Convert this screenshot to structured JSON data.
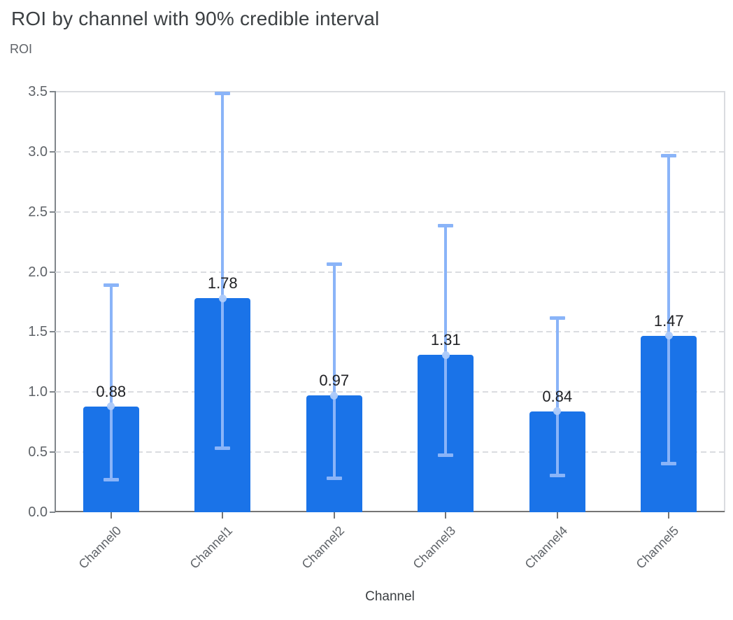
{
  "header": {
    "title": "ROI by channel with 90% credible interval"
  },
  "chart_data": {
    "type": "bar",
    "title": "ROI by channel with 90% credible interval",
    "xlabel": "Channel",
    "ylabel": "ROI",
    "categories": [
      "Channel0",
      "Channel1",
      "Channel2",
      "Channel3",
      "Channel4",
      "Channel5"
    ],
    "values": [
      0.88,
      1.78,
      0.97,
      1.31,
      0.84,
      1.47
    ],
    "value_labels": [
      "0.88",
      "1.78",
      "0.97",
      "1.31",
      "0.84",
      "1.47"
    ],
    "error_bars": {
      "label": "90% credible interval",
      "low": [
        0.27,
        0.53,
        0.28,
        0.47,
        0.3,
        0.4
      ],
      "high": [
        1.89,
        3.49,
        2.07,
        2.39,
        1.62,
        2.97
      ]
    },
    "ylim": [
      0,
      3.5
    ],
    "ytick_labels": [
      "0.0",
      "0.5",
      "1.0",
      "1.5",
      "2.0",
      "2.5",
      "3.0",
      "3.5"
    ],
    "grid": "horizontal-dashed",
    "legend": "none",
    "bar_color": "#1a73e8",
    "error_bar_color": "#8ab4f8",
    "marker_color": "#aecbfa"
  },
  "colors": {
    "background": "#ffffff",
    "title": "#3c4043",
    "axis_labels": "#5f6368",
    "value_label": "#202124",
    "gridline": "#dadce0",
    "axis_line": "#80868b",
    "baseline": "#757575"
  }
}
